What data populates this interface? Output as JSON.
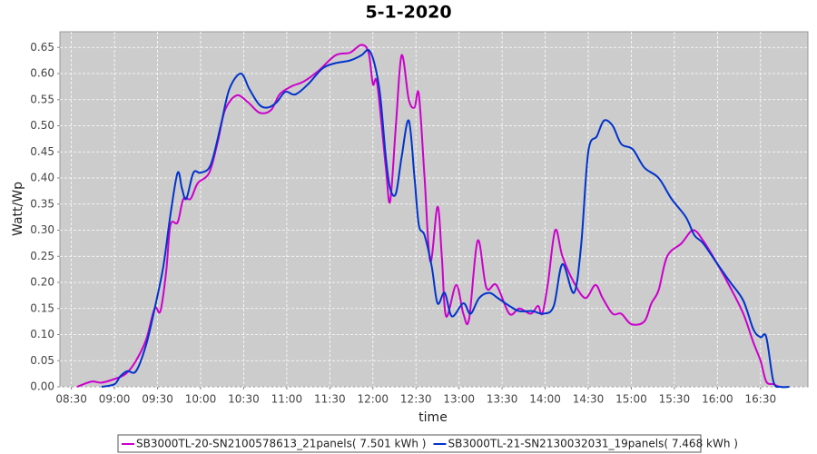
{
  "chart_data": {
    "type": "line",
    "title": "5-1-2020",
    "x_label": "time",
    "y_label": "Watt/Wp",
    "xlim": [
      "08:22",
      "17:03"
    ],
    "xticks": [
      "08:30",
      "09:00",
      "09:30",
      "10:00",
      "10:30",
      "11:00",
      "11:30",
      "12:00",
      "12:30",
      "13:00",
      "13:30",
      "14:00",
      "14:30",
      "15:00",
      "15:30",
      "16:00",
      "16:30"
    ],
    "ylim": [
      0,
      0.68
    ],
    "yticks": [
      {
        "value": 0,
        "label": "0.00"
      },
      {
        "value": 0.05,
        "label": "0.05"
      },
      {
        "value": 0.1,
        "label": "0.10"
      },
      {
        "value": 0.15,
        "label": "0.15"
      },
      {
        "value": 0.2,
        "label": "0.20"
      },
      {
        "value": 0.25,
        "label": "0.25"
      },
      {
        "value": 0.3,
        "label": "0.30"
      },
      {
        "value": 0.35,
        "label": "0.35"
      },
      {
        "value": 0.4,
        "label": "0.40"
      },
      {
        "value": 0.45,
        "label": "0.45"
      },
      {
        "value": 0.5,
        "label": "0.50"
      },
      {
        "value": 0.55,
        "label": "0.55"
      },
      {
        "value": 0.6,
        "label": "0.60"
      },
      {
        "value": 0.65,
        "label": "0.65"
      }
    ],
    "grid": true,
    "legend": "bottom",
    "series": [
      {
        "name": "SB3000TL-20-SN2100578613_21panels( 7.501 kWh )",
        "color": "#cc00cc",
        "x": [
          "08:34",
          "08:44",
          "08:51",
          "09:00",
          "09:08",
          "09:15",
          "09:22",
          "09:28",
          "09:32",
          "09:36",
          "09:39",
          "09:44",
          "09:48",
          "09:53",
          "09:58",
          "10:06",
          "10:12",
          "10:17",
          "10:25",
          "10:33",
          "10:41",
          "10:49",
          "10:55",
          "11:03",
          "11:12",
          "11:22",
          "11:34",
          "11:44",
          "11:52",
          "11:57",
          "12:00",
          "12:03",
          "12:09",
          "12:12",
          "12:16",
          "12:20",
          "12:25",
          "12:29",
          "12:32",
          "12:36",
          "12:40",
          "12:45",
          "12:48",
          "12:51",
          "12:58",
          "13:03",
          "13:07",
          "13:13",
          "13:19",
          "13:26",
          "13:35",
          "13:42",
          "13:50",
          "13:55",
          "13:58",
          "14:02",
          "14:07",
          "14:12",
          "14:20",
          "14:28",
          "14:35",
          "14:40",
          "14:47",
          "14:53",
          "15:00",
          "15:09",
          "15:14",
          "15:19",
          "15:25",
          "15:35",
          "15:43",
          "15:50",
          "16:00",
          "16:09",
          "16:18",
          "16:25",
          "16:30",
          "16:34",
          "16:39",
          "16:43"
        ],
        "values": [
          0,
          0.01,
          0.008,
          0.015,
          0.025,
          0.05,
          0.09,
          0.15,
          0.145,
          0.22,
          0.31,
          0.315,
          0.36,
          0.36,
          0.39,
          0.41,
          0.47,
          0.53,
          0.558,
          0.545,
          0.525,
          0.53,
          0.56,
          0.575,
          0.585,
          0.605,
          0.635,
          0.64,
          0.655,
          0.64,
          0.58,
          0.58,
          0.42,
          0.355,
          0.5,
          0.635,
          0.55,
          0.535,
          0.56,
          0.4,
          0.24,
          0.345,
          0.25,
          0.135,
          0.195,
          0.14,
          0.13,
          0.28,
          0.19,
          0.195,
          0.14,
          0.15,
          0.14,
          0.155,
          0.14,
          0.2,
          0.3,
          0.25,
          0.2,
          0.17,
          0.195,
          0.17,
          0.14,
          0.14,
          0.12,
          0.125,
          0.16,
          0.185,
          0.25,
          0.275,
          0.3,
          0.28,
          0.235,
          0.19,
          0.14,
          0.085,
          0.05,
          0.01,
          0.005,
          0
        ]
      },
      {
        "name": "SB3000TL-21-SN2130032031_19panels( 7.468 kWh )",
        "color": "#0033cc",
        "x": [
          "08:51",
          "09:00",
          "09:04",
          "09:09",
          "09:15",
          "09:22",
          "09:28",
          "09:34",
          "09:39",
          "09:44",
          "09:47",
          "09:50",
          "09:55",
          "10:00",
          "10:07",
          "10:14",
          "10:20",
          "10:28",
          "10:34",
          "10:41",
          "10:47",
          "10:53",
          "10:59",
          "11:06",
          "11:15",
          "11:25",
          "11:34",
          "11:44",
          "11:52",
          "11:57",
          "12:01",
          "12:05",
          "12:09",
          "12:12",
          "12:16",
          "12:20",
          "12:25",
          "12:29",
          "12:32",
          "12:36",
          "12:41",
          "12:45",
          "12:50",
          "12:55",
          "13:03",
          "13:08",
          "13:14",
          "13:21",
          "13:27",
          "13:35",
          "13:42",
          "13:51",
          "13:59",
          "14:06",
          "14:12",
          "14:20",
          "14:25",
          "14:30",
          "14:36",
          "14:41",
          "14:47",
          "14:53",
          "15:01",
          "15:09",
          "15:19",
          "15:28",
          "15:38",
          "15:44",
          "15:50",
          "16:00",
          "16:09",
          "16:18",
          "16:25",
          "16:30",
          "16:34",
          "16:39",
          "16:44",
          "16:50"
        ],
        "values": [
          0,
          0.005,
          0.02,
          0.03,
          0.03,
          0.08,
          0.15,
          0.23,
          0.33,
          0.41,
          0.38,
          0.36,
          0.41,
          0.41,
          0.425,
          0.5,
          0.57,
          0.6,
          0.57,
          0.54,
          0.535,
          0.545,
          0.565,
          0.56,
          0.58,
          0.61,
          0.62,
          0.625,
          0.635,
          0.645,
          0.62,
          0.56,
          0.44,
          0.38,
          0.37,
          0.44,
          0.51,
          0.4,
          0.31,
          0.29,
          0.23,
          0.16,
          0.18,
          0.135,
          0.16,
          0.14,
          0.17,
          0.18,
          0.17,
          0.155,
          0.145,
          0.145,
          0.14,
          0.155,
          0.235,
          0.18,
          0.27,
          0.45,
          0.48,
          0.51,
          0.5,
          0.465,
          0.455,
          0.42,
          0.4,
          0.36,
          0.325,
          0.29,
          0.275,
          0.235,
          0.2,
          0.165,
          0.11,
          0.095,
          0.095,
          0.01,
          0,
          0
        ]
      }
    ]
  }
}
